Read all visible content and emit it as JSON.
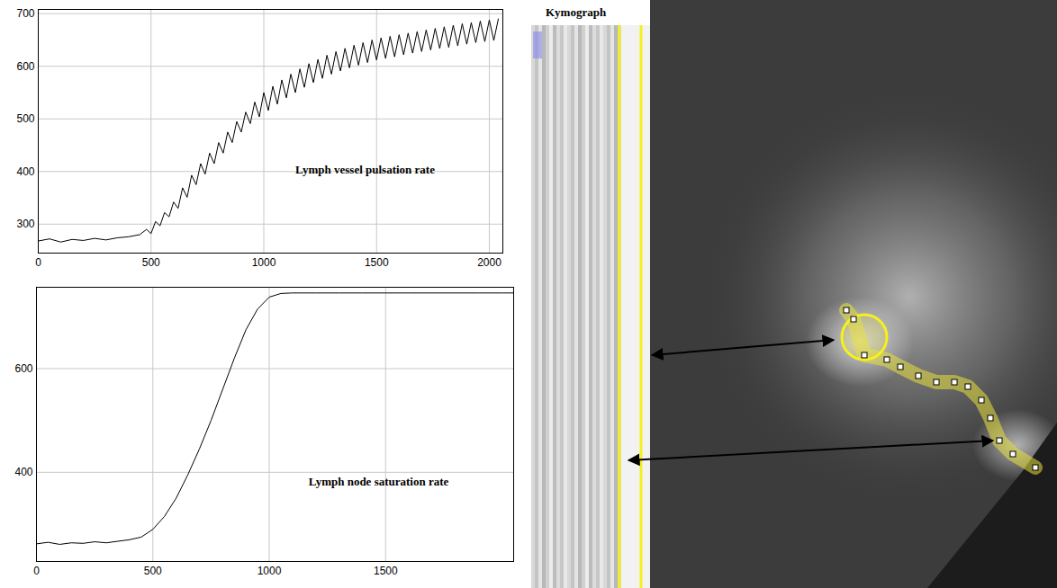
{
  "chart_data": [
    {
      "type": "line",
      "annotation": "Lymph vessel pulsation rate",
      "color": "#000000",
      "grid": true,
      "xlim": [
        0,
        2060
      ],
      "xticks": [
        0,
        500,
        1000,
        1500,
        2000
      ],
      "ylim": [
        245,
        708
      ],
      "yticks": [
        300,
        400,
        500,
        600,
        700
      ],
      "x": [
        0,
        50,
        100,
        150,
        200,
        250,
        300,
        350,
        400,
        450,
        480,
        500,
        520,
        540,
        560,
        580,
        600,
        620,
        640,
        660,
        680,
        700,
        720,
        740,
        760,
        780,
        800,
        820,
        840,
        860,
        880,
        900,
        920,
        940,
        960,
        980,
        1000,
        1020,
        1040,
        1060,
        1080,
        1100,
        1120,
        1140,
        1160,
        1180,
        1200,
        1220,
        1240,
        1260,
        1280,
        1300,
        1320,
        1340,
        1360,
        1380,
        1400,
        1420,
        1440,
        1460,
        1480,
        1500,
        1520,
        1540,
        1560,
        1580,
        1600,
        1620,
        1640,
        1660,
        1680,
        1700,
        1720,
        1740,
        1760,
        1780,
        1800,
        1820,
        1840,
        1860,
        1880,
        1900,
        1920,
        1940,
        1960,
        1980,
        2000,
        2020,
        2040
      ],
      "values": [
        268,
        272,
        266,
        271,
        269,
        273,
        270,
        274,
        276,
        280,
        290,
        282,
        305,
        297,
        322,
        314,
        342,
        330,
        369,
        351,
        393,
        375,
        415,
        395,
        435,
        415,
        455,
        435,
        475,
        455,
        495,
        475,
        513,
        491,
        532,
        504,
        550,
        516,
        562,
        528,
        574,
        540,
        585,
        550,
        595,
        560,
        605,
        569,
        613,
        577,
        621,
        585,
        628,
        591,
        634,
        597,
        640,
        602,
        645,
        607,
        650,
        612,
        654,
        615,
        657,
        618,
        660,
        622,
        663,
        625,
        666,
        628,
        669,
        631,
        672,
        634,
        675,
        636,
        678,
        639,
        681,
        642,
        683,
        645,
        686,
        647,
        688,
        649,
        690
      ]
    },
    {
      "type": "line",
      "annotation": "Lymph node saturation rate",
      "color": "#000000",
      "grid": true,
      "xlim": [
        0,
        2050
      ],
      "xticks": [
        0,
        500,
        1000,
        1500
      ],
      "ylim": [
        228,
        757
      ],
      "yticks": [
        400,
        600
      ],
      "x": [
        0,
        50,
        100,
        150,
        200,
        250,
        300,
        350,
        400,
        450,
        500,
        550,
        600,
        650,
        700,
        750,
        800,
        850,
        900,
        950,
        1000,
        1050,
        1100,
        1150,
        1200,
        1300,
        1400,
        1500,
        1600,
        1700,
        1800,
        1900,
        2000,
        2050
      ],
      "values": [
        262,
        265,
        261,
        264,
        263,
        266,
        264,
        267,
        270,
        275,
        290,
        315,
        350,
        395,
        445,
        500,
        560,
        620,
        675,
        715,
        738,
        745,
        746,
        746,
        746,
        746,
        746,
        746,
        746,
        746,
        746,
        746,
        746,
        746
      ]
    }
  ],
  "image_panel": {
    "title": "Kymograph"
  }
}
